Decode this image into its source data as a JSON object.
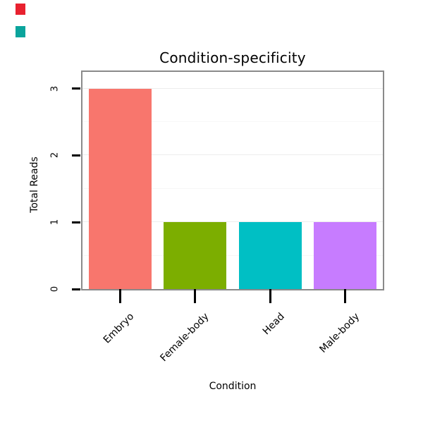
{
  "decorations": {
    "marker_red_color": "#e8212f",
    "marker_teal_color": "#0aa49c"
  },
  "chart_data": {
    "type": "bar",
    "title": "Condition-specificity",
    "xlabel": "Condition",
    "ylabel": "Total Reads",
    "categories": [
      "Embryo",
      "Female-body",
      "Head",
      "Male-body"
    ],
    "values": [
      3,
      1,
      1,
      1
    ],
    "bar_colors": [
      "#F8766D",
      "#7CAE00",
      "#00BFC4",
      "#C77CFF"
    ],
    "y_ticks": [
      0,
      1,
      2,
      3
    ],
    "ylim": [
      0,
      3.25
    ],
    "grid": "faint horizontal gridlines at 0.5 intervals",
    "legend": "none"
  }
}
